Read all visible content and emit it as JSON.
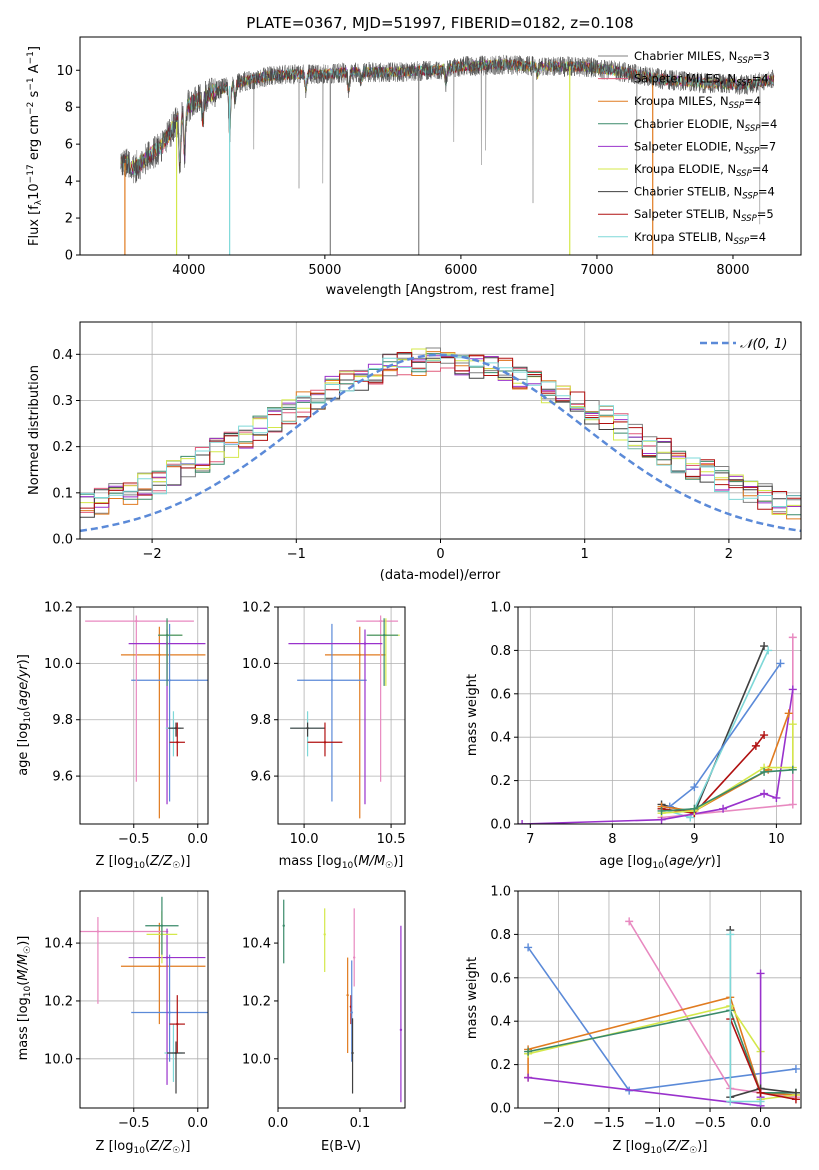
{
  "chart_data": [
    {
      "id": "spectrum",
      "type": "line",
      "title": "PLATE=0367, MJD=51997, FIBERID=0182, z=0.108",
      "xlabel": "wavelength [Angstrom, rest frame]",
      "ylabel": "Flux [f_λ10^-17 erg cm^-2 s^-1 A^-1]",
      "xlim": [
        3200,
        8500
      ],
      "ylim": [
        0,
        11.8
      ],
      "xticks": [
        4000,
        5000,
        6000,
        7000,
        8000
      ],
      "yticks": [
        0,
        2,
        4,
        6,
        8,
        10
      ],
      "grid": false,
      "legend_position": "right",
      "series": [
        {
          "name": "Chabrier MILES, N_SSP=3",
          "color": "#808080"
        },
        {
          "name": "Salpeter MILES, N_SSP=4",
          "color": "#e05a7a"
        },
        {
          "name": "Kroupa MILES, N_SSP=4",
          "color": "#e07b20"
        },
        {
          "name": "Chabrier ELODIE, N_SSP=4",
          "color": "#3a8a6a"
        },
        {
          "name": "Salpeter ELODIE, N_SSP=7",
          "color": "#9932cc"
        },
        {
          "name": "Kroupa ELODIE, N_SSP=4",
          "color": "#d4e84a"
        },
        {
          "name": "Chabrier STELIB, N_SSP=4",
          "color": "#404040"
        },
        {
          "name": "Salpeter STELIB, N_SSP=5",
          "color": "#b01010"
        },
        {
          "name": "Kroupa STELIB, N_SSP=4",
          "color": "#7ed8d8"
        }
      ],
      "continuum": {
        "x": [
          3500,
          3600,
          3700,
          3800,
          3900,
          4000,
          4200,
          4400,
          4600,
          4800,
          5000,
          5200,
          5500,
          5800,
          6000,
          6300,
          6600,
          6900,
          7200,
          7500,
          7800,
          8100,
          8300
        ],
        "y": [
          5.1,
          4.7,
          5.3,
          5.9,
          7.1,
          8.1,
          8.9,
          9.4,
          9.7,
          9.8,
          9.8,
          9.9,
          9.9,
          10.0,
          10.2,
          10.3,
          10.2,
          10.2,
          9.9,
          9.5,
          9.3,
          9.2,
          9.5
        ]
      }
    },
    {
      "id": "residuals",
      "type": "histogram",
      "xlabel": "(data-model)/error",
      "ylabel": "Normed distribution",
      "xlim": [
        -2.5,
        2.5
      ],
      "ylim": [
        0,
        0.47
      ],
      "xticks": [
        -2,
        -1,
        0,
        1,
        2
      ],
      "yticks": [
        0.0,
        0.1,
        0.2,
        0.3,
        0.4
      ],
      "grid": true,
      "legend_position": "top-right",
      "reference": {
        "name": "𝒩(0, 1)",
        "mean": 0,
        "sigma": 1,
        "color": "#5b8ad8"
      }
    },
    {
      "id": "age_vs_Z",
      "type": "errorbar",
      "xlabel": "Z [log10(Z/Z☉)]",
      "ylabel": "age [log10(age/yr)]",
      "xlim": [
        -0.92,
        0.08
      ],
      "ylim": [
        9.43,
        10.2
      ],
      "xticks": [
        -0.5,
        0.0
      ],
      "yticks": [
        9.6,
        9.8,
        10.0,
        10.2
      ],
      "grid": true,
      "points": [
        {
          "color": "#e07b20",
          "x": -0.3,
          "xerr": [
            0.3,
            0.36
          ],
          "y": 10.03,
          "yerr": [
            0.58,
            0.1
          ]
        },
        {
          "color": "#5b8ad8",
          "x": -0.22,
          "xerr": [
            0.3,
            0.3
          ],
          "y": 9.94,
          "yerr": [
            0.43,
            0.2
          ]
        },
        {
          "color": "#e889c0",
          "x": -0.48,
          "xerr": [
            0.4,
            0.45
          ],
          "y": 10.15,
          "yerr": [
            0.57,
            0.02
          ]
        },
        {
          "color": "#9932cc",
          "x": -0.24,
          "xerr": [
            0.3,
            0.3
          ],
          "y": 10.07,
          "yerr": [
            0.57,
            0.05
          ]
        },
        {
          "color": "#d4e84a",
          "x": -0.24,
          "xerr": [
            0.06,
            0.12
          ],
          "y": 10.1,
          "yerr": [
            0.1,
            0.05
          ]
        },
        {
          "color": "#3a8a6a",
          "x": -0.24,
          "xerr": [
            0.07,
            0.12
          ],
          "y": 10.1,
          "yerr": [
            0.18,
            0.06
          ]
        },
        {
          "color": "#7ed8d8",
          "x": -0.19,
          "xerr": [
            0.06,
            0.06
          ],
          "y": 9.77,
          "yerr": [
            0.1,
            0.06
          ]
        },
        {
          "color": "#404040",
          "x": -0.17,
          "xerr": [
            0.06,
            0.06
          ],
          "y": 9.77,
          "yerr": [
            0.03,
            0.02
          ]
        },
        {
          "color": "#b01010",
          "x": -0.16,
          "xerr": [
            0.06,
            0.06
          ],
          "y": 9.72,
          "yerr": [
            0.05,
            0.07
          ]
        }
      ]
    },
    {
      "id": "age_vs_mass",
      "type": "errorbar",
      "xlabel": "mass [log10(M/M☉)]",
      "ylabel": "",
      "xlim": [
        9.85,
        10.58
      ],
      "ylim": [
        9.43,
        10.2
      ],
      "xticks": [
        10.0,
        10.5
      ],
      "yticks": [
        9.6,
        9.8,
        10.0,
        10.2
      ],
      "grid": true,
      "points": [
        {
          "color": "#e07b20",
          "x": 10.32,
          "xerr": [
            0.2,
            0.15
          ],
          "y": 10.03,
          "yerr": [
            0.58,
            0.1
          ]
        },
        {
          "color": "#5b8ad8",
          "x": 10.16,
          "xerr": [
            0.2,
            0.2
          ],
          "y": 9.94,
          "yerr": [
            0.43,
            0.2
          ]
        },
        {
          "color": "#e889c0",
          "x": 10.44,
          "xerr": [
            0.14,
            0.1
          ],
          "y": 10.15,
          "yerr": [
            0.57,
            0.02
          ]
        },
        {
          "color": "#9932cc",
          "x": 10.35,
          "xerr": [
            0.44,
            0.1
          ],
          "y": 10.07,
          "yerr": [
            0.57,
            0.05
          ]
        },
        {
          "color": "#d4e84a",
          "x": 10.47,
          "xerr": [
            0.1,
            0.08
          ],
          "y": 10.1,
          "yerr": [
            0.18,
            0.06
          ]
        },
        {
          "color": "#3a8a6a",
          "x": 10.46,
          "xerr": [
            0.1,
            0.08
          ],
          "y": 10.1,
          "yerr": [
            0.18,
            0.06
          ]
        },
        {
          "color": "#7ed8d8",
          "x": 10.02,
          "xerr": [
            0.1,
            0.1
          ],
          "y": 9.77,
          "yerr": [
            0.1,
            0.06
          ]
        },
        {
          "color": "#404040",
          "x": 10.02,
          "xerr": [
            0.1,
            0.1
          ],
          "y": 9.77,
          "yerr": [
            0.03,
            0.02
          ]
        },
        {
          "color": "#b01010",
          "x": 10.12,
          "xerr": [
            0.1,
            0.1
          ],
          "y": 9.72,
          "yerr": [
            0.05,
            0.07
          ]
        }
      ]
    },
    {
      "id": "massweight_vs_age",
      "type": "line",
      "xlabel": "age [log10(age/yr)]",
      "ylabel": "mass weight",
      "xlim": [
        6.85,
        10.3
      ],
      "ylim": [
        0,
        1.0
      ],
      "xticks": [
        7,
        8,
        9,
        10
      ],
      "yticks": [
        0.0,
        0.2,
        0.4,
        0.6,
        0.8,
        1.0
      ],
      "grid": true,
      "series": [
        {
          "color": "#404040",
          "x": [
            8.6,
            9.0,
            9.85
          ],
          "y": [
            0.09,
            0.05,
            0.82
          ]
        },
        {
          "color": "#7ed8d8",
          "x": [
            8.6,
            8.95,
            9.9
          ],
          "y": [
            0.07,
            0.03,
            0.8
          ]
        },
        {
          "color": "#5b8ad8",
          "x": [
            8.7,
            9.0,
            10.05
          ],
          "y": [
            0.08,
            0.17,
            0.74
          ]
        },
        {
          "color": "#b01010",
          "x": [
            8.6,
            9.0,
            9.75,
            9.85
          ],
          "y": [
            0.07,
            0.05,
            0.36,
            0.41
          ]
        },
        {
          "color": "#e889c0",
          "x": [
            8.6,
            10.2,
            10.2
          ],
          "y": [
            0.03,
            0.09,
            0.86
          ]
        },
        {
          "color": "#9932cc",
          "x": [
            6.9,
            8.6,
            9.35,
            9.85,
            10.0,
            10.2
          ],
          "y": [
            0.0,
            0.02,
            0.07,
            0.14,
            0.12,
            0.62
          ]
        },
        {
          "color": "#e07b20",
          "x": [
            8.6,
            9.0,
            9.9,
            10.15
          ],
          "y": [
            0.08,
            0.06,
            0.25,
            0.51
          ]
        },
        {
          "color": "#d4e84a",
          "x": [
            8.6,
            9.0,
            9.85,
            10.2,
            10.2
          ],
          "y": [
            0.05,
            0.06,
            0.26,
            0.26,
            0.46
          ]
        },
        {
          "color": "#3a8a6a",
          "x": [
            8.6,
            9.0,
            9.85,
            10.2
          ],
          "y": [
            0.06,
            0.07,
            0.24,
            0.25
          ]
        }
      ]
    },
    {
      "id": "mass_vs_Z",
      "type": "errorbar",
      "xlabel": "Z [log10(Z/Z☉)]",
      "ylabel": "mass [log10(M/M☉)]",
      "xlim": [
        -0.92,
        0.08
      ],
      "ylim": [
        9.83,
        10.58
      ],
      "xticks": [
        -0.5,
        0.0
      ],
      "yticks": [
        10.0,
        10.2,
        10.4
      ],
      "grid": true,
      "points": [
        {
          "color": "#e07b20",
          "x": -0.3,
          "xerr": [
            0.3,
            0.36
          ],
          "y": 10.32,
          "yerr": [
            0.2,
            0.15
          ]
        },
        {
          "color": "#5b8ad8",
          "x": -0.22,
          "xerr": [
            0.3,
            0.3
          ],
          "y": 10.16,
          "yerr": [
            0.17,
            0.2
          ]
        },
        {
          "color": "#e889c0",
          "x": -0.78,
          "xerr": [
            0.15,
            0.55
          ],
          "y": 10.44,
          "yerr": [
            0.25,
            0.05
          ]
        },
        {
          "color": "#9932cc",
          "x": -0.24,
          "xerr": [
            0.3,
            0.3
          ],
          "y": 10.35,
          "yerr": [
            0.44,
            0.1
          ]
        },
        {
          "color": "#d4e84a",
          "x": -0.28,
          "xerr": [
            0.12,
            0.12
          ],
          "y": 10.43,
          "yerr": [
            0.1,
            0.08
          ]
        },
        {
          "color": "#3a8a6a",
          "x": -0.28,
          "xerr": [
            0.13,
            0.13
          ],
          "y": 10.46,
          "yerr": [
            0.1,
            0.1
          ]
        },
        {
          "color": "#7ed8d8",
          "x": -0.19,
          "xerr": [
            0.07,
            0.07
          ],
          "y": 10.02,
          "yerr": [
            0.1,
            0.1
          ]
        },
        {
          "color": "#404040",
          "x": -0.17,
          "xerr": [
            0.07,
            0.07
          ],
          "y": 10.02,
          "yerr": [
            0.14,
            0.04
          ]
        },
        {
          "color": "#b01010",
          "x": -0.16,
          "xerr": [
            0.06,
            0.06
          ],
          "y": 10.12,
          "yerr": [
            0.1,
            0.1
          ]
        }
      ]
    },
    {
      "id": "mass_vs_EBV",
      "type": "errorbar",
      "xlabel": "E(B-V)",
      "ylabel": "",
      "xlim": [
        0.0,
        0.155
      ],
      "ylim": [
        9.83,
        10.58
      ],
      "xticks": [
        0.0,
        0.1
      ],
      "yticks": [
        10.0,
        10.2,
        10.4
      ],
      "grid": false,
      "points": [
        {
          "color": "#3a8a6a",
          "x": 0.007,
          "y": 10.46,
          "yerr": [
            0.13,
            0.09
          ]
        },
        {
          "color": "#d4e84a",
          "x": 0.057,
          "y": 10.43,
          "yerr": [
            0.13,
            0.09
          ]
        },
        {
          "color": "#e07b20",
          "x": 0.085,
          "y": 10.22,
          "yerr": [
            0.2,
            0.13
          ]
        },
        {
          "color": "#b01010",
          "x": 0.089,
          "y": 10.18,
          "yerr": [
            0.06,
            0.04
          ]
        },
        {
          "color": "#5b8ad8",
          "x": 0.09,
          "y": 10.16,
          "yerr": [
            0.17,
            0.18
          ]
        },
        {
          "color": "#404040",
          "x": 0.091,
          "y": 10.02,
          "yerr": [
            0.14,
            0.12
          ]
        },
        {
          "color": "#e889c0",
          "x": 0.093,
          "y": 10.35,
          "yerr": [
            0.1,
            0.17
          ]
        },
        {
          "color": "#9932cc",
          "x": 0.15,
          "y": 10.1,
          "yerr": [
            0.25,
            0.36
          ]
        }
      ]
    },
    {
      "id": "massweight_vs_Z",
      "type": "line",
      "xlabel": "Z [log10(Z/Z☉)]",
      "ylabel": "mass weight",
      "xlim": [
        -2.4,
        0.4
      ],
      "ylim": [
        0,
        1.0
      ],
      "xticks": [
        -2.0,
        -1.5,
        -1.0,
        -0.5,
        0.0
      ],
      "yticks": [
        0.0,
        0.2,
        0.4,
        0.6,
        0.8,
        1.0
      ],
      "grid": true,
      "series": [
        {
          "color": "#5b8ad8",
          "x": [
            -2.3,
            -1.3,
            0.35
          ],
          "y": [
            0.74,
            0.08,
            0.18
          ]
        },
        {
          "color": "#e889c0",
          "x": [
            -1.3,
            -0.3,
            0.0,
            0.35
          ],
          "y": [
            0.86,
            0.09,
            0.07,
            0.05
          ]
        },
        {
          "color": "#e07b20",
          "x": [
            -2.3,
            -2.3,
            -0.3,
            0.0,
            0.35
          ],
          "y": [
            0.14,
            0.27,
            0.51,
            0.07,
            0.06
          ]
        },
        {
          "color": "#d4e84a",
          "x": [
            -2.3,
            -0.3,
            0.0,
            0.0,
            0.35
          ],
          "y": [
            0.25,
            0.47,
            0.26,
            0.04,
            0.06
          ]
        },
        {
          "color": "#3a8a6a",
          "x": [
            -2.3,
            -0.3,
            0.0,
            0.35
          ],
          "y": [
            0.26,
            0.45,
            0.07,
            0.07
          ]
        },
        {
          "color": "#9932cc",
          "x": [
            -2.3,
            0.0,
            0.0,
            0.0
          ],
          "y": [
            0.14,
            0.01,
            0.05,
            0.62
          ]
        },
        {
          "color": "#404040",
          "x": [
            -0.3,
            -0.3,
            0.0,
            0.35
          ],
          "y": [
            0.82,
            0.05,
            0.09,
            0.07
          ]
        },
        {
          "color": "#b01010",
          "x": [
            -0.3,
            0.0,
            0.35
          ],
          "y": [
            0.41,
            0.07,
            0.04
          ]
        },
        {
          "color": "#7ed8d8",
          "x": [
            -0.3,
            -0.3,
            0.0
          ],
          "y": [
            0.8,
            0.03,
            0.03
          ]
        }
      ]
    }
  ]
}
